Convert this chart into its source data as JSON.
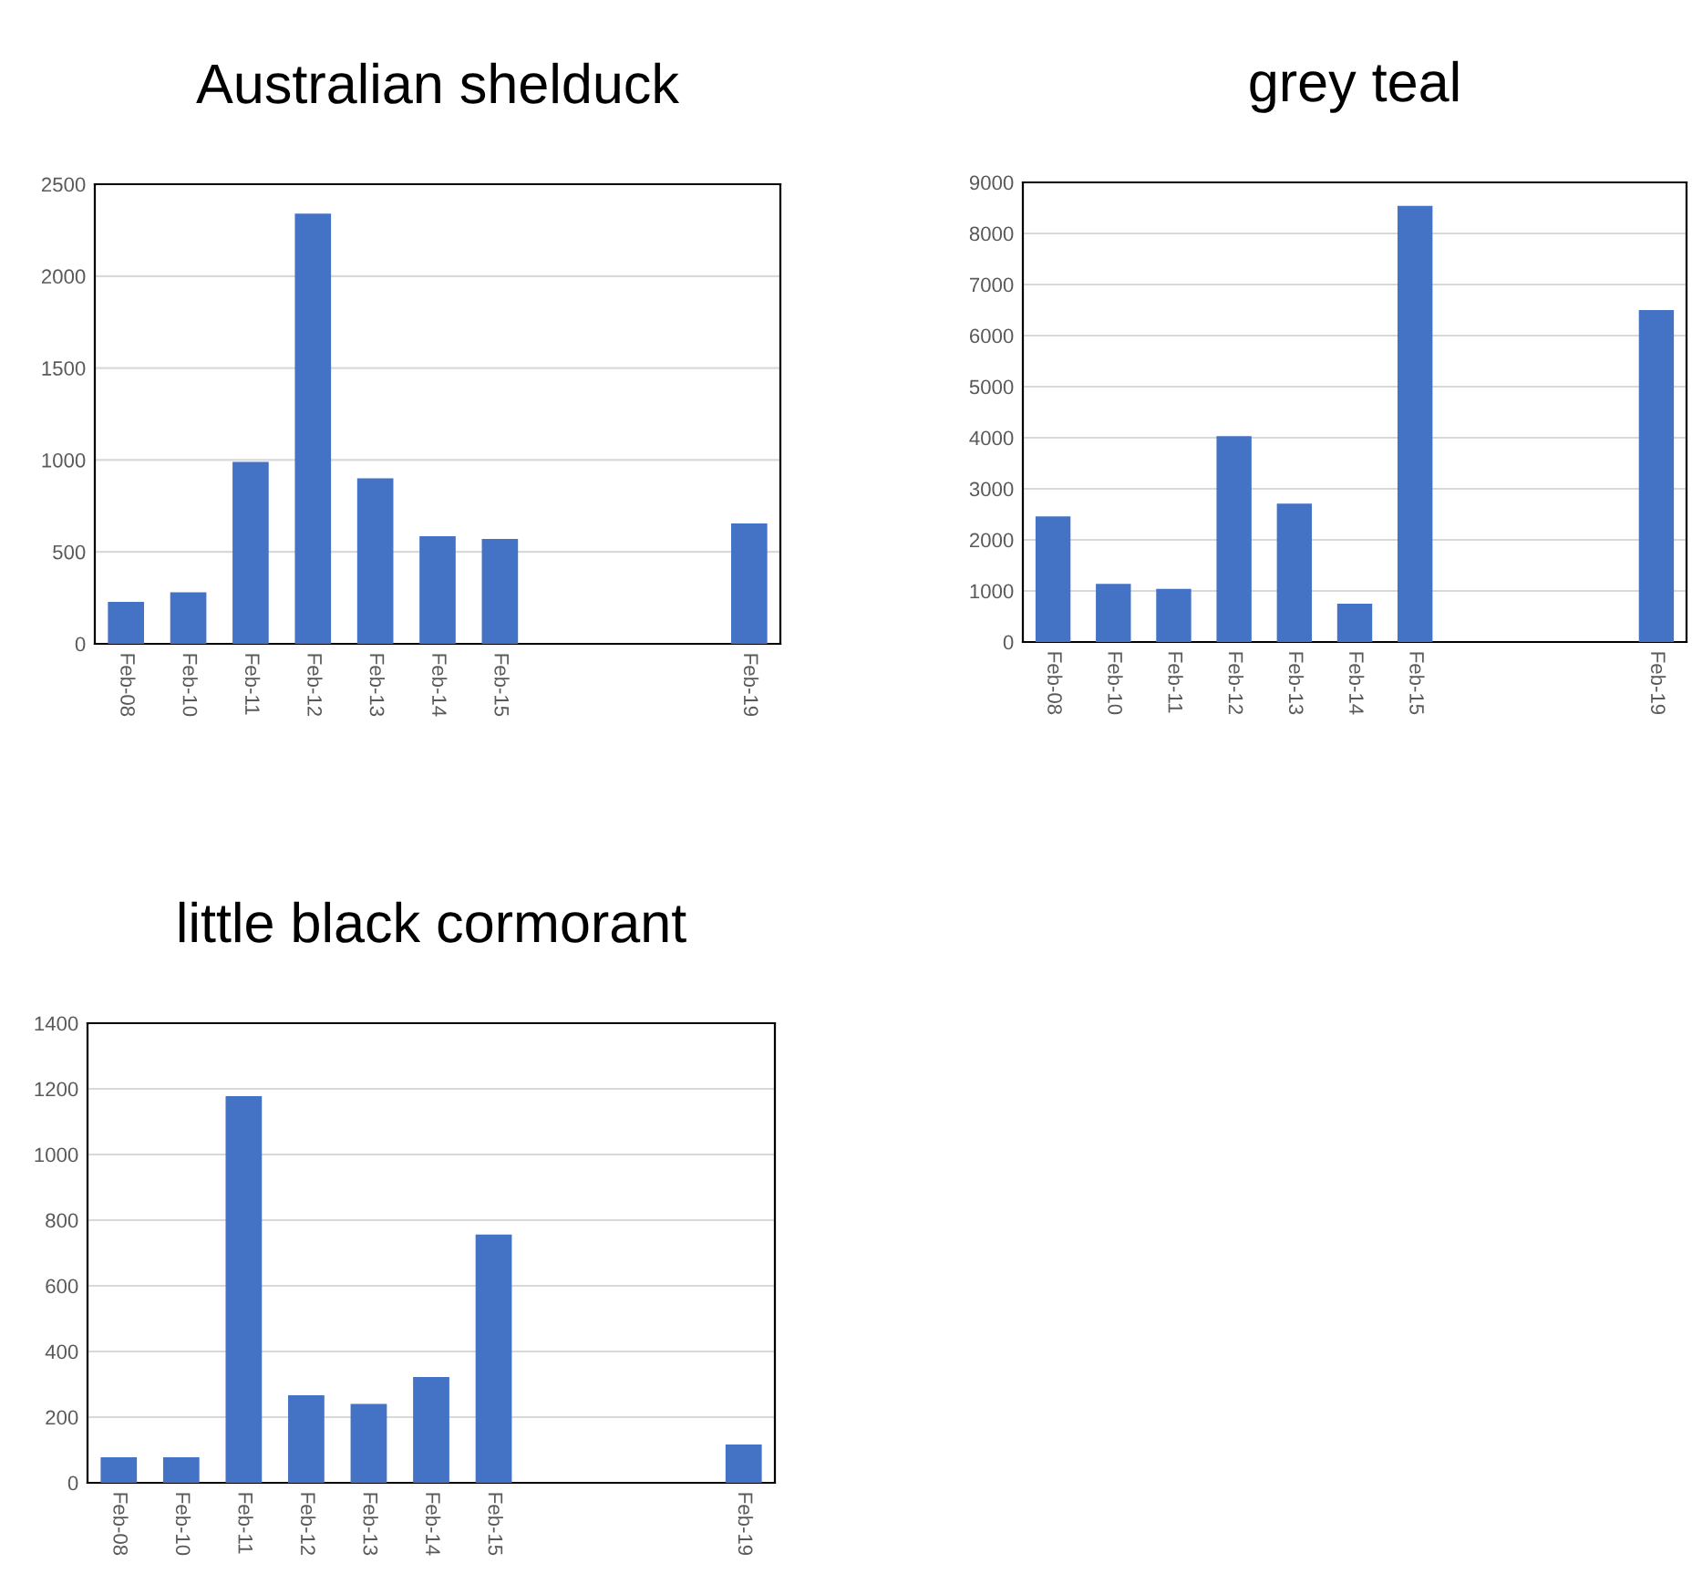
{
  "chart_data": [
    {
      "type": "bar",
      "title": "Australian shelduck",
      "categories": [
        "Feb-08",
        "Feb-10",
        "Feb-11",
        "Feb-12",
        "Feb-13",
        "Feb-14",
        "Feb-15",
        null,
        null,
        null,
        "Feb-19"
      ],
      "values": [
        228,
        280,
        990,
        2340,
        900,
        585,
        570,
        null,
        null,
        null,
        655
      ],
      "color": "#4472c4",
      "ylim": [
        0,
        2500
      ],
      "yticks": [
        0,
        500,
        1000,
        1500,
        2000,
        2500
      ],
      "grid": "y"
    },
    {
      "type": "bar",
      "title": "grey teal",
      "categories": [
        "Feb-08",
        "Feb-10",
        "Feb-11",
        "Feb-12",
        "Feb-13",
        "Feb-14",
        "Feb-15",
        null,
        null,
        null,
        "Feb-19"
      ],
      "values": [
        2460,
        1140,
        1040,
        4030,
        2710,
        750,
        8540,
        null,
        null,
        null,
        6500
      ],
      "color": "#4472c4",
      "ylim": [
        0,
        9000
      ],
      "yticks": [
        0,
        1000,
        2000,
        3000,
        4000,
        5000,
        6000,
        7000,
        8000,
        9000
      ],
      "grid": "y"
    },
    {
      "type": "bar",
      "title": "little black cormorant",
      "categories": [
        "Feb-08",
        "Feb-10",
        "Feb-11",
        "Feb-12",
        "Feb-13",
        "Feb-14",
        "Feb-15",
        null,
        null,
        null,
        "Feb-19"
      ],
      "values": [
        78,
        78,
        1178,
        267,
        240,
        322,
        756,
        null,
        null,
        null,
        117
      ],
      "color": "#4472c4",
      "ylim": [
        0,
        1400
      ],
      "yticks": [
        0,
        200,
        400,
        600,
        800,
        1000,
        1200,
        1400
      ],
      "grid": "y"
    }
  ]
}
